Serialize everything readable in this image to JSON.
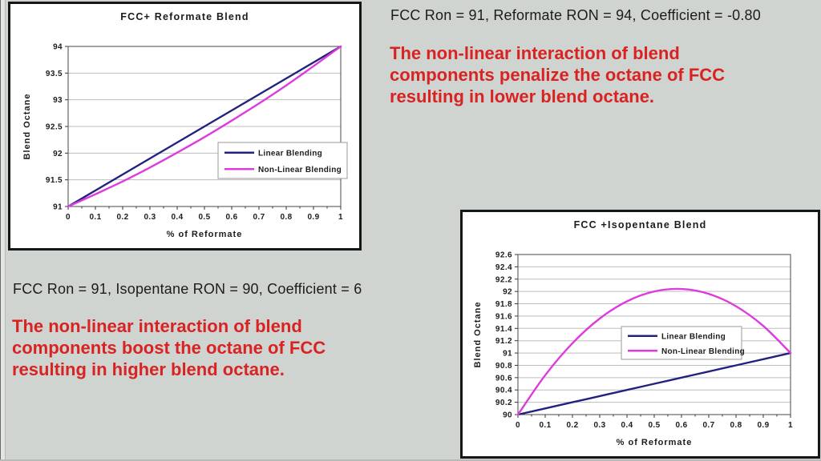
{
  "slide": {
    "background_color": "#d0d4d0",
    "panels": [
      {
        "id": "reformate",
        "params_text": "FCC Ron = 91, Reformate RON = 94, Coefficient = -0.80",
        "note_lines": [
          "The non-linear interaction of blend",
          "components penalize the octane of FCC",
          "resulting in lower blend octane."
        ],
        "note_color": "#d92222"
      },
      {
        "id": "isopentane",
        "params_text": "FCC Ron = 91, Isopentane RON = 90, Coefficient = 6",
        "note_lines": [
          "The non-linear interaction of blend",
          "components boost the octane of FCC",
          "resulting in higher blend octane."
        ],
        "note_color": "#d92222"
      }
    ]
  },
  "chart_data": [
    {
      "type": "line",
      "title": "FCC+ Reformate Blend",
      "xlabel": "% of Reformate",
      "ylabel": "Blend Octane",
      "x": [
        0,
        0.1,
        0.2,
        0.3,
        0.4,
        0.5,
        0.6,
        0.7,
        0.8,
        0.9,
        1
      ],
      "series": [
        {
          "name": "Linear Blending",
          "color": "#22227e",
          "values": [
            91,
            91.3,
            91.6,
            91.9,
            92.2,
            92.5,
            92.8,
            93.1,
            93.4,
            93.7,
            94
          ]
        },
        {
          "name": "Non-Linear Blending",
          "color": "#de3bde",
          "values": [
            91,
            91.23,
            91.47,
            91.73,
            92.01,
            92.3,
            92.61,
            92.93,
            93.27,
            93.63,
            94
          ]
        }
      ],
      "xlim": [
        0,
        1
      ],
      "ylim": [
        91,
        94
      ],
      "ytick_step": 0.5,
      "grid": true,
      "legend_position": "inside-center-right"
    },
    {
      "type": "line",
      "title": "FCC +Isopentane Blend",
      "xlabel": "% of Reformate",
      "ylabel": "Blend Octane",
      "x": [
        0,
        0.1,
        0.2,
        0.3,
        0.4,
        0.5,
        0.6,
        0.7,
        0.8,
        0.9,
        1
      ],
      "series": [
        {
          "name": "Linear Blending",
          "color": "#22227e",
          "values": [
            90,
            90.1,
            90.2,
            90.3,
            90.4,
            90.5,
            90.6,
            90.7,
            90.8,
            90.9,
            91
          ]
        },
        {
          "name": "Non-Linear Blending",
          "color": "#de3bde",
          "values": [
            90,
            90.64,
            91.16,
            91.56,
            91.84,
            92.0,
            92.04,
            91.96,
            91.76,
            91.44,
            91
          ]
        }
      ],
      "xlim": [
        0,
        1
      ],
      "ylim": [
        90,
        92.6
      ],
      "ytick_step": 0.2,
      "grid": true,
      "legend_position": "inside-center"
    }
  ],
  "chart_style": {
    "gridline_color": "#bdbdbd",
    "plot_border_color": "#4a4a4a",
    "legend_border_color": "#9a9a9a",
    "text_color": "#1c1c1c"
  }
}
